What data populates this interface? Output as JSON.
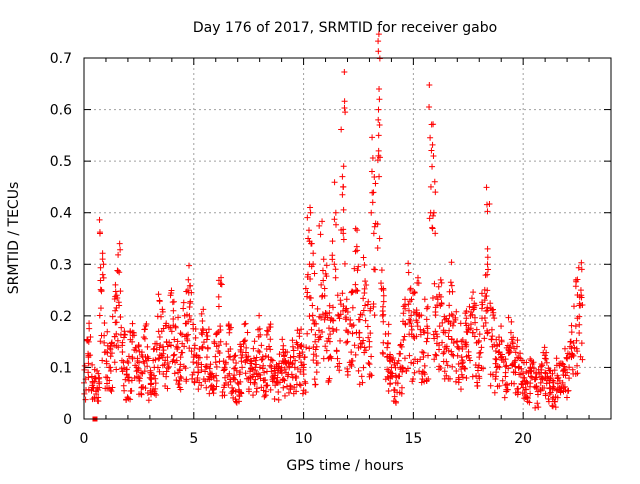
{
  "chart_data": {
    "type": "scatter",
    "title": "Day 176 of 2017, SRMTID for receiver gabo",
    "xlabel": "GPS time / hours",
    "ylabel": "SRMTID / TECUs",
    "xlim": [
      0,
      24
    ],
    "ylim": [
      0,
      0.7
    ],
    "xticks": [
      0,
      5,
      10,
      15,
      20
    ],
    "yticks": [
      0,
      0.1,
      0.2,
      0.3,
      0.4,
      0.5,
      0.6,
      0.7
    ],
    "xtick_labels": [
      "0",
      "5",
      "10",
      "15",
      "20"
    ],
    "ytick_labels": [
      "0",
      "0.1",
      "0.2",
      "0.3",
      "0.4",
      "0.5",
      "0.6",
      "0.7"
    ],
    "grid": true,
    "marker": "plus",
    "color": "#ff0000",
    "outlier_point": {
      "x": 0.5,
      "y": 0.0,
      "marker": "square"
    },
    "series": [
      {
        "name": "SRMTID",
        "x": [
          0.0,
          0.2,
          0.4,
          0.6,
          0.8,
          1.0,
          1.2,
          1.4,
          1.6,
          1.8,
          2.0,
          2.2,
          2.4,
          2.6,
          2.8,
          3.0,
          3.2,
          3.4,
          3.6,
          3.8,
          4.0,
          4.2,
          4.4,
          4.6,
          4.8,
          5.0,
          5.2,
          5.4,
          5.6,
          5.8,
          6.0,
          6.2,
          6.4,
          6.6,
          6.8,
          7.0,
          7.2,
          7.4,
          7.6,
          7.8,
          8.0,
          8.2,
          8.4,
          8.6,
          8.8,
          9.0,
          9.2,
          9.4,
          9.6,
          9.8,
          10.0,
          10.2,
          10.4,
          10.6,
          10.8,
          11.0,
          11.2,
          11.4,
          11.6,
          11.8,
          12.0,
          12.2,
          12.4,
          12.6,
          12.8,
          13.0,
          13.2,
          13.4,
          13.6,
          13.8,
          14.0,
          14.2,
          14.4,
          14.6,
          14.8,
          15.0,
          15.2,
          15.4,
          15.6,
          15.8,
          16.0,
          16.2,
          16.4,
          16.6,
          16.8,
          17.0,
          17.2,
          17.4,
          17.6,
          17.8,
          18.0,
          18.2,
          18.4,
          18.6,
          18.8,
          19.0,
          19.2,
          19.4,
          19.6,
          19.8,
          20.0,
          20.2,
          20.4,
          20.6,
          20.8,
          21.0,
          21.2,
          21.4,
          21.6,
          21.8,
          22.0,
          22.2,
          22.4,
          22.6
        ],
        "values": [
          0.07,
          0.12,
          0.07,
          0.06,
          0.25,
          0.13,
          0.1,
          0.16,
          0.22,
          0.11,
          0.08,
          0.12,
          0.1,
          0.09,
          0.12,
          0.08,
          0.1,
          0.17,
          0.14,
          0.12,
          0.17,
          0.14,
          0.12,
          0.16,
          0.2,
          0.12,
          0.09,
          0.14,
          0.12,
          0.08,
          0.11,
          0.18,
          0.1,
          0.12,
          0.08,
          0.07,
          0.1,
          0.12,
          0.08,
          0.1,
          0.13,
          0.09,
          0.12,
          0.08,
          0.07,
          0.1,
          0.09,
          0.11,
          0.1,
          0.12,
          0.1,
          0.28,
          0.22,
          0.14,
          0.26,
          0.2,
          0.15,
          0.3,
          0.2,
          0.45,
          0.15,
          0.18,
          0.25,
          0.14,
          0.22,
          0.15,
          0.36,
          0.58,
          0.2,
          0.12,
          0.1,
          0.07,
          0.1,
          0.16,
          0.21,
          0.16,
          0.18,
          0.13,
          0.15,
          0.45,
          0.17,
          0.18,
          0.13,
          0.16,
          0.2,
          0.14,
          0.12,
          0.14,
          0.2,
          0.16,
          0.12,
          0.18,
          0.29,
          0.14,
          0.1,
          0.12,
          0.09,
          0.13,
          0.11,
          0.1,
          0.08,
          0.07,
          0.08,
          0.06,
          0.07,
          0.09,
          0.07,
          0.06,
          0.08,
          0.07,
          0.09,
          0.12,
          0.18,
          0.22
        ]
      }
    ]
  }
}
